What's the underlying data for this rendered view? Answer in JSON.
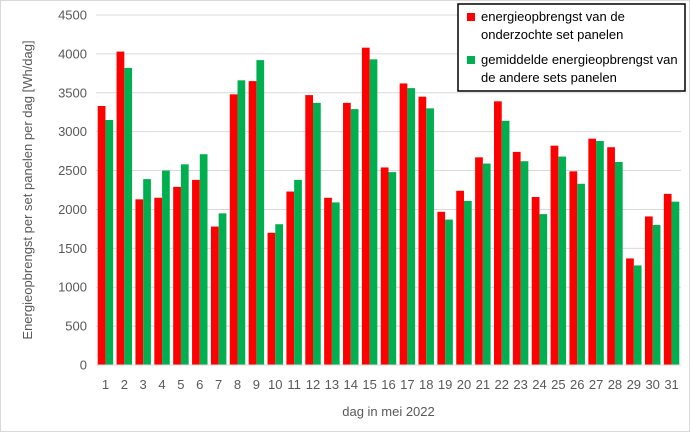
{
  "chart_data": {
    "type": "bar",
    "title": "",
    "xlabel": "dag in mei 2022",
    "ylabel": "Energieopbrengst per set panelen per dag [Wh/dag]",
    "ylim": [
      0,
      4500
    ],
    "yticks": [
      0,
      500,
      1000,
      1500,
      2000,
      2500,
      3000,
      3500,
      4000,
      4500
    ],
    "grid": true,
    "legend_position": "top-right",
    "categories": [
      "1",
      "2",
      "3",
      "4",
      "5",
      "6",
      "7",
      "8",
      "9",
      "10",
      "11",
      "12",
      "13",
      "14",
      "15",
      "16",
      "17",
      "18",
      "19",
      "20",
      "21",
      "22",
      "23",
      "24",
      "25",
      "26",
      "27",
      "28",
      "29",
      "30",
      "31"
    ],
    "series": [
      {
        "name": "energieopbrengst van de onderzochte set panelen",
        "legend_lines": [
          "energieopbrengst van de",
          "onderzochte set panelen"
        ],
        "color": "#ff0000",
        "values": [
          3330,
          4030,
          2130,
          2150,
          2290,
          2380,
          1780,
          3480,
          3650,
          1700,
          2230,
          3470,
          2150,
          3370,
          4080,
          2540,
          3620,
          3450,
          1970,
          2240,
          2670,
          3390,
          2740,
          2160,
          2820,
          2490,
          2910,
          2800,
          1370,
          1910,
          2200
        ]
      },
      {
        "name": "gemiddelde energieopbrengst van de andere sets panelen",
        "legend_lines": [
          "gemiddelde energieopbrengst van",
          "de andere sets panelen"
        ],
        "color": "#00b050",
        "values": [
          3150,
          3820,
          2390,
          2500,
          2580,
          2710,
          1950,
          3660,
          3920,
          1810,
          2380,
          3370,
          2090,
          3290,
          3930,
          2480,
          3560,
          3300,
          1870,
          2110,
          2590,
          3140,
          2620,
          1940,
          2680,
          2330,
          2880,
          2610,
          1280,
          1800,
          2100
        ]
      }
    ]
  }
}
